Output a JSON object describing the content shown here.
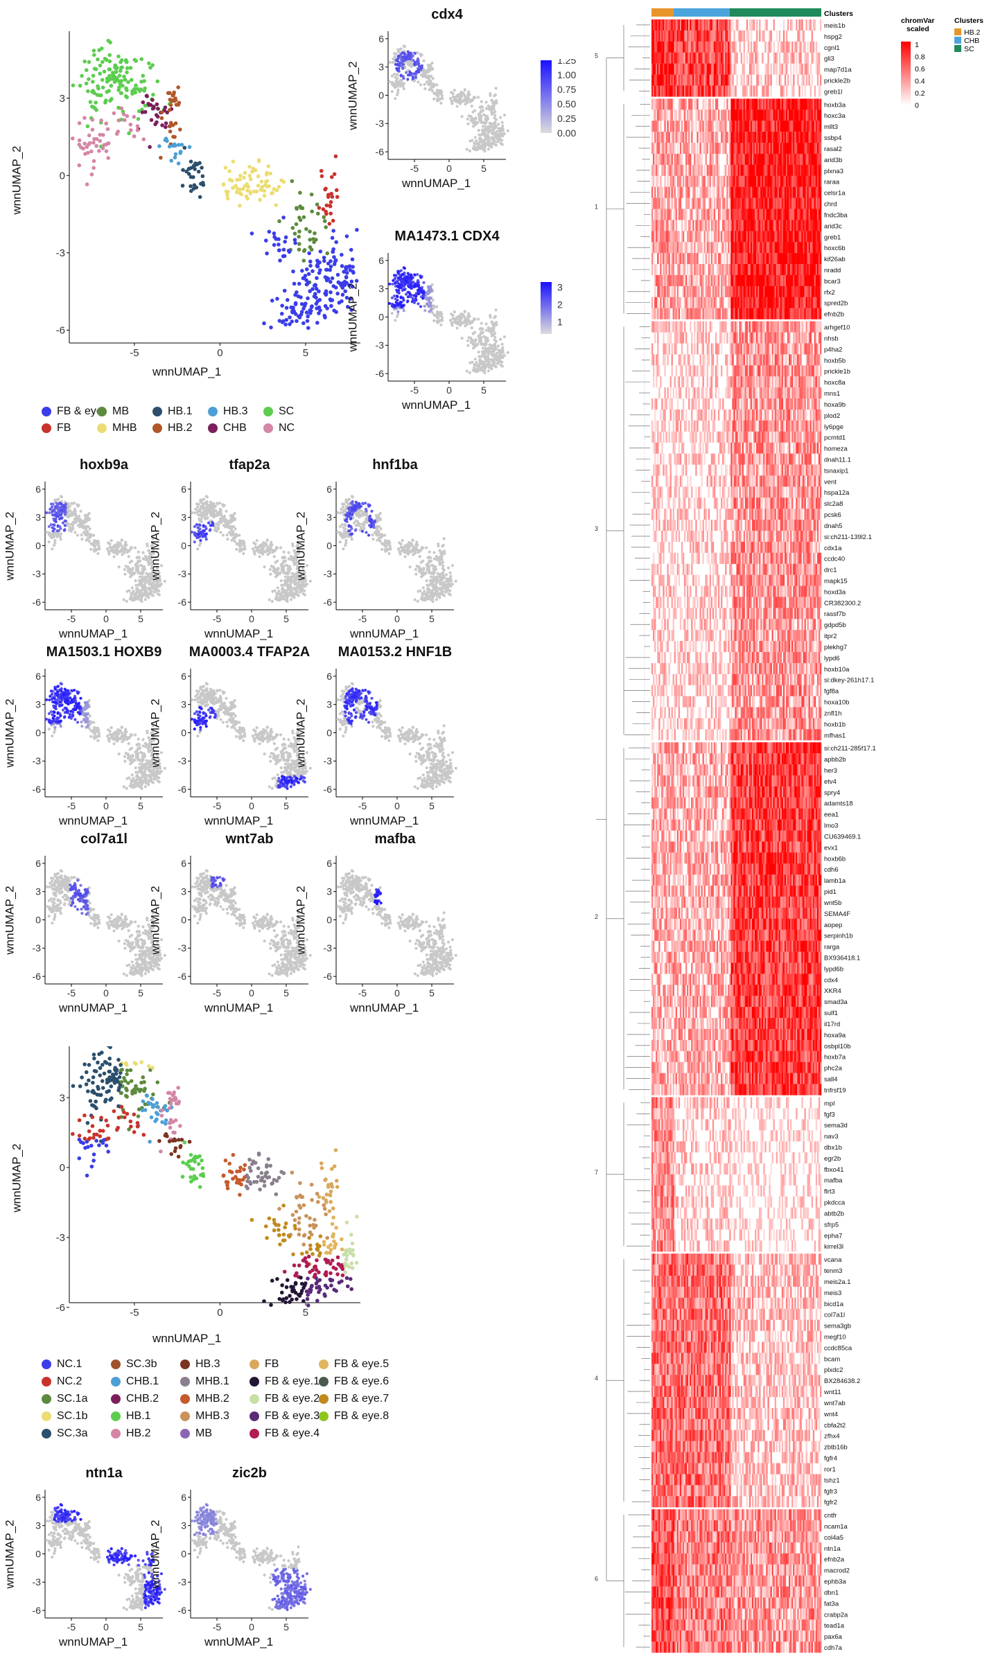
{
  "colors": {
    "high": "#1a10ff",
    "low": "#c8c8c8",
    "heat_high": "#ff0000",
    "heat_low": "#ffffff",
    "HB.2": "#e7952b",
    "CHB": "#4ca4dc",
    "SC": "#1f8a5b"
  },
  "axes": {
    "x_label": "wnnUMAP_1",
    "y_label": "wnnUMAP_2",
    "main_x_ticks": [
      "-5",
      "0",
      "5"
    ],
    "main_y_ticks": [
      "3",
      "0",
      "-3",
      "-6"
    ],
    "small_x_ticks": [
      "-5",
      "0",
      "5"
    ],
    "small_y_ticks": [
      "6",
      "3",
      "0",
      "-3",
      "-6"
    ]
  },
  "cluster_legend_1": [
    {
      "label": "FB & eye",
      "color": "#3b3de8"
    },
    {
      "label": "FB",
      "color": "#c8332b"
    },
    {
      "label": "MB",
      "color": "#5d8a3d"
    },
    {
      "label": "MHB",
      "color": "#ebdd72"
    },
    {
      "label": "HB.1",
      "color": "#2b4f6d"
    },
    {
      "label": "HB.2",
      "color": "#b0572a"
    },
    {
      "label": "HB.3",
      "color": "#4d9fd5"
    },
    {
      "label": "CHB",
      "color": "#7b1f5c"
    },
    {
      "label": "SC",
      "color": "#5ccd4f"
    },
    {
      "label": "NC",
      "color": "#d486a6"
    }
  ],
  "cluster_legend_2": [
    {
      "label": "NC.1",
      "color": "#3b3de8"
    },
    {
      "label": "NC.2",
      "color": "#c8332b"
    },
    {
      "label": "SC.1a",
      "color": "#5d8a3d"
    },
    {
      "label": "SC.1b",
      "color": "#ebdd72"
    },
    {
      "label": "SC.3a",
      "color": "#2b4f6d"
    },
    {
      "label": "SC.3b",
      "color": "#a0522d"
    },
    {
      "label": "CHB.1",
      "color": "#4d9fd5"
    },
    {
      "label": "CHB.2",
      "color": "#7b1f5c"
    },
    {
      "label": "HB.1",
      "color": "#5ccd4f"
    },
    {
      "label": "HB.2",
      "color": "#d486a6"
    },
    {
      "label": "HB.3",
      "color": "#7a3420"
    },
    {
      "label": "MHB.1",
      "color": "#8a7f8c"
    },
    {
      "label": "MHB.2",
      "color": "#c65a2b"
    },
    {
      "label": "MHB.3",
      "color": "#c9925b"
    },
    {
      "label": "MB",
      "color": "#8a65b4"
    },
    {
      "label": "FB",
      "color": "#d9a85c"
    },
    {
      "label": "FB & eye.1",
      "color": "#241636"
    },
    {
      "label": "FB & eye.2",
      "color": "#c8e0a8"
    },
    {
      "label": "FB & eye.3",
      "color": "#5a2a78"
    },
    {
      "label": "FB & eye.4",
      "color": "#b01c54"
    },
    {
      "label": "FB & eye.5",
      "color": "#e2b45e"
    },
    {
      "label": "FB & eye.6",
      "color": "#4b5a4e"
    },
    {
      "label": "FB & eye.7",
      "color": "#c08a1c"
    },
    {
      "label": "FB & eye.8",
      "color": "#8ec61e"
    }
  ],
  "feature_panels": [
    {
      "title": "cdx4",
      "region": "n-loop",
      "legend": {
        "ticks": [
          "1.25",
          "1.00",
          "0.75",
          "0.50",
          "0.25",
          "0.00"
        ]
      }
    },
    {
      "title": "MA1473.1 CDX4",
      "region": "n-loop-strong",
      "legend": {
        "ticks": [
          "3",
          "2",
          "1"
        ]
      }
    },
    {
      "title": "hoxb9a",
      "region": "n-left"
    },
    {
      "title": "tfap2a",
      "region": "n-lower-left"
    },
    {
      "title": "hnf1ba",
      "region": "n-ring"
    },
    {
      "title": "MA1503.1 HOXB9",
      "region": "n-loop-strong"
    },
    {
      "title": "MA0003.4 TFAP2A",
      "region": "tfap2a-motif"
    },
    {
      "title": "MA0153.2 HNF1B",
      "region": "n-ring-strong"
    },
    {
      "title": "col7a1l",
      "region": "n-right"
    },
    {
      "title": "wnt7ab",
      "region": "n-top"
    },
    {
      "title": "mafba",
      "region": "n-spot"
    },
    {
      "title": "ntn1a",
      "region": "ntn1a"
    },
    {
      "title": "zic2b",
      "region": "zic2b"
    }
  ],
  "heatmap": {
    "annotation_title": "Clusters",
    "legend_title": "chromVar\nscaled",
    "legend_ticks": [
      "1",
      "0.8",
      "0.6",
      "0.4",
      "0.2",
      "0"
    ],
    "cluster_legend_title": "Clusters",
    "clusters": [
      "HB.2",
      "CHB",
      "SC"
    ],
    "modules": [
      {
        "id": "5",
        "genes": [
          "meis1b",
          "hspg2",
          "cgnl1",
          "gli3",
          "map7d1a",
          "prickle2b",
          "greb1l"
        ],
        "profile": [
          0.85,
          0.7,
          0.15
        ]
      },
      {
        "id": "1",
        "genes": [
          "hoxb3a",
          "hoxc3a",
          "mllt3",
          "ssbp4",
          "rasal2",
          "arid3b",
          "plxna3",
          "raraa",
          "celsr1a",
          "chrd",
          "fndc3ba",
          "arid3c",
          "greb1",
          "hoxc6b",
          "kif26ab",
          "nradd",
          "bcar3",
          "rfx2",
          "spred2b",
          "efnb2b"
        ],
        "profile": [
          0.35,
          0.3,
          0.9
        ]
      },
      {
        "id": "3",
        "genes": [
          "arhgef10",
          "nhsb",
          "p4ha2",
          "hoxb5b",
          "prickle1b",
          "hoxc8a",
          "mns1",
          "hoxa9b",
          "plod2",
          "ly6pge",
          "pcmtd1",
          "homeza",
          "dnah11.1",
          "tsnaxip1",
          "vent",
          "hspa12a",
          "slc2a8",
          "pcsk6",
          "dnah5",
          "si:ch211-139l2.1",
          "cdx1a",
          "ccdc40",
          "drc1",
          "mapk15",
          "hoxd3a",
          "CR382300.2",
          "rassf7b",
          "gdpd5b",
          "itpr2",
          "plekhg7",
          "lypd6",
          "hoxb10a",
          "si:dkey-261h17.1",
          "fgf8a",
          "hoxa10b",
          "znfl1h",
          "hoxb1b",
          "mfhas1"
        ],
        "profile": [
          0.12,
          0.12,
          0.4
        ]
      },
      {
        "id": "2",
        "genes": [
          "si:ch211-285f17.1",
          "apbb2b",
          "her3",
          "etv4",
          "spry4",
          "adamts18",
          "eea1",
          "lmo3",
          "CU639469.1",
          "evx1",
          "hoxb6b",
          "cdh6",
          "lamb1a",
          "pid1",
          "wnt5b",
          "SEMA4F",
          "aopep",
          "serpinh1b",
          "rarga",
          "BX936418.1",
          "lypd6b",
          "cdx4",
          "XKR4",
          "smad3a",
          "sulf1",
          "il17rd",
          "hoxa9a",
          "osbpl10b",
          "hoxb7a",
          "phc2a",
          "sall4",
          "tnfrsf19"
        ],
        "profile": [
          0.3,
          0.3,
          0.75
        ]
      },
      {
        "id": "7",
        "genes": [
          "mpl",
          "fgf3",
          "sema3d",
          "nav3",
          "dbx1b",
          "egr2b",
          "fbxo41",
          "mafba",
          "flrt3",
          "pkdcca",
          "abtb2b",
          "sfrp5",
          "epha7",
          "kirrel3l"
        ],
        "profile": [
          0.45,
          0.12,
          0.04
        ]
      },
      {
        "id": "4",
        "genes": [
          "vcana",
          "tenm3",
          "meis2a.1",
          "meis3",
          "bicd1a",
          "col7a1l",
          "sema3gb",
          "megf10",
          "ccdc85ca",
          "bcam",
          "plxdc2",
          "BX284638.2",
          "wnt11",
          "wnt7ab",
          "wnt4",
          "cbfa2t2",
          "zfhx4",
          "zbtb16b",
          "fgfr4",
          "ror1",
          "tshz1",
          "fgfr3",
          "fgfr2"
        ],
        "profile": [
          0.55,
          0.55,
          0.2
        ]
      },
      {
        "id": "6",
        "genes": [
          "cntfr",
          "ncam1a",
          "col4a5",
          "ntn1a",
          "efnb2a",
          "macrod2",
          "ephb3a",
          "dbn1",
          "fat3a",
          "crabp2a",
          "tead1a",
          "pax6a",
          "cdh7a"
        ],
        "profile": [
          0.7,
          0.5,
          0.4
        ]
      }
    ]
  }
}
